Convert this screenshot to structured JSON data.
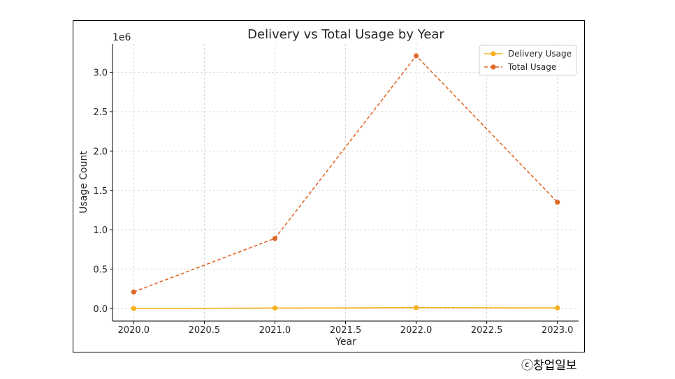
{
  "chart_data": {
    "type": "line",
    "title": "Delivery vs Total Usage by Year",
    "xlabel": "Year",
    "ylabel": "Usage Count",
    "y_offset_label": "1e6",
    "xlim": [
      1.9,
      2.0
    ],
    "ylim": [
      -0.16,
      3.36
    ],
    "x_ticks": [
      2020.0,
      2020.5,
      2021.0,
      2021.5,
      2022.0,
      2022.5,
      2023.0
    ],
    "x_tick_labels": [
      "2020.0",
      "2020.5",
      "2021.0",
      "2021.5",
      "2022.0",
      "2022.5",
      "2023.0"
    ],
    "y_ticks": [
      0.0,
      0.5,
      1.0,
      1.5,
      2.0,
      2.5,
      3.0
    ],
    "y_tick_labels": [
      "0.0",
      "0.5",
      "1.0",
      "1.5",
      "2.0",
      "2.5",
      "3.0"
    ],
    "grid": true,
    "legend_position": "top-right",
    "x": [
      2020,
      2021,
      2022,
      2023
    ],
    "series": [
      {
        "name": "Delivery Usage",
        "values": [
          0.0,
          0.005,
          0.01,
          0.008
        ],
        "color": "#f5b01a",
        "style": "solid",
        "marker": "circle"
      },
      {
        "name": "Total Usage",
        "values": [
          0.21,
          0.89,
          3.21,
          1.35
        ],
        "color": "#e0692a",
        "style": "dashed",
        "marker": "circle"
      }
    ]
  },
  "credit": "ⓒ창업일보"
}
